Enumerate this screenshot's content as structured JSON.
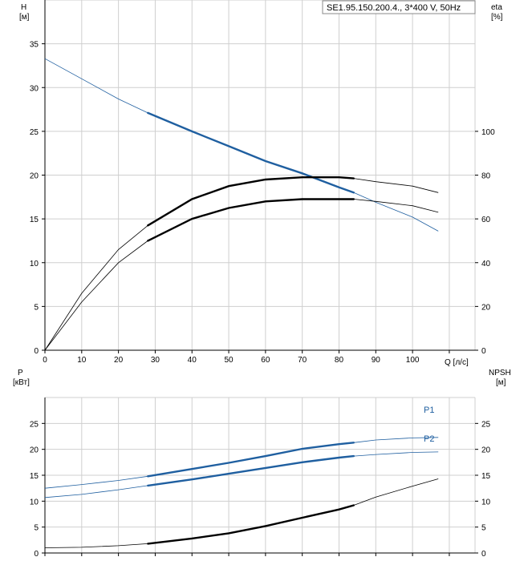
{
  "title": "SE1.95.150.200.4., 3*400 V, 50Hz",
  "top_chart": {
    "ylabel": "H",
    "yunit": "[м]",
    "y2label": "eta",
    "y2unit": "[%]",
    "xlabel": "Q [л/с]",
    "x_ticks": [
      "0",
      "10",
      "20",
      "30",
      "40",
      "50",
      "60",
      "70",
      "80",
      "90",
      "100"
    ],
    "y_ticks": [
      "0",
      "5",
      "10",
      "15",
      "20",
      "25",
      "30",
      "35"
    ],
    "y2_ticks": [
      "0",
      "20",
      "40",
      "60",
      "80",
      "100"
    ]
  },
  "bottom_chart": {
    "ylabel": "P",
    "yunit": "[кВт]",
    "y2label": "NPSH",
    "y2unit": "[м]",
    "y_ticks": [
      "0",
      "5",
      "10",
      "15",
      "20",
      "25"
    ],
    "y2_ticks": [
      "0",
      "5",
      "10",
      "15",
      "20",
      "25"
    ]
  },
  "colors": {
    "blue": "#1f5fa0",
    "black": "#000000",
    "grid": "#cfcfcf"
  },
  "chart_data": [
    {
      "type": "line",
      "title": "SE1.95.150.200.4., 3*400 V, 50Hz",
      "xlabel": "Q [л/с]",
      "ylabel": "H [м]",
      "y2label": "eta [%]",
      "xlim": [
        0,
        117
      ],
      "ylim": [
        0,
        40
      ],
      "y2lim": [
        0,
        160
      ],
      "grid": true,
      "series": [
        {
          "axis": "y",
          "color": "#1f5fa0",
          "x": [
            0,
            10,
            20,
            28,
            40,
            50,
            60,
            70,
            80,
            84,
            90,
            100,
            107
          ],
          "y": [
            33.3,
            31.0,
            28.7,
            27.1,
            25.0,
            23.3,
            21.6,
            20.2,
            18.6,
            18.0,
            16.9,
            15.2,
            13.6
          ],
          "operating_range": [
            28,
            84
          ]
        },
        {
          "axis": "y2",
          "color": "#000000",
          "x": [
            0,
            10,
            20,
            28,
            40,
            50,
            60,
            70,
            80,
            84,
            90,
            100,
            107
          ],
          "y": [
            0,
            26,
            46,
            57,
            69,
            75,
            78,
            79,
            79,
            78.5,
            77,
            75,
            72
          ],
          "operating_range": [
            28,
            84
          ]
        },
        {
          "axis": "y2",
          "color": "#000000",
          "x": [
            0,
            10,
            20,
            28,
            40,
            50,
            60,
            70,
            80,
            84,
            90,
            100,
            107
          ],
          "y": [
            0,
            22,
            40,
            50,
            60,
            65,
            68,
            69,
            69,
            69,
            68,
            66,
            63
          ],
          "operating_range": [
            28,
            84
          ]
        }
      ]
    },
    {
      "type": "line",
      "ylabel": "P [кВт]",
      "y2label": "NPSH [м]",
      "xlim": [
        0,
        117
      ],
      "ylim": [
        0,
        30
      ],
      "y2lim": [
        0,
        30
      ],
      "grid": true,
      "series": [
        {
          "name": "P1",
          "axis": "y",
          "color": "#1f5fa0",
          "x": [
            0,
            10,
            20,
            28,
            40,
            50,
            60,
            70,
            80,
            84,
            90,
            100,
            107
          ],
          "y": [
            12.5,
            13.2,
            14.0,
            14.8,
            16.2,
            17.4,
            18.7,
            20.1,
            21.0,
            21.3,
            21.8,
            22.2,
            22.3
          ],
          "operating_range": [
            28,
            84
          ]
        },
        {
          "name": "P2",
          "axis": "y",
          "color": "#1f5fa0",
          "x": [
            0,
            10,
            20,
            28,
            40,
            50,
            60,
            70,
            80,
            84,
            90,
            100,
            107
          ],
          "y": [
            10.7,
            11.3,
            12.2,
            13.0,
            14.2,
            15.3,
            16.4,
            17.5,
            18.4,
            18.7,
            19.0,
            19.4,
            19.5
          ],
          "operating_range": [
            28,
            84
          ]
        },
        {
          "axis": "y2",
          "color": "#000000",
          "x": [
            0,
            10,
            20,
            28,
            40,
            50,
            60,
            70,
            80,
            84,
            90,
            100,
            107
          ],
          "y": [
            1.0,
            1.1,
            1.4,
            1.8,
            2.8,
            3.8,
            5.2,
            6.8,
            8.4,
            9.2,
            10.8,
            12.9,
            14.3
          ],
          "operating_range": [
            28,
            84
          ]
        }
      ]
    }
  ]
}
